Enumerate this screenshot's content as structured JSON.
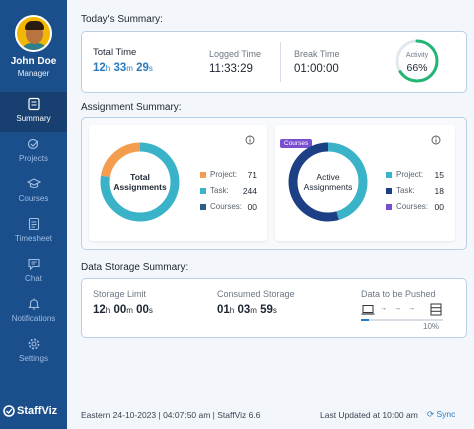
{
  "user": {
    "name": "John Doe",
    "role": "Manager"
  },
  "nav": [
    {
      "label": "Summary",
      "icon": "summary-icon",
      "active": true
    },
    {
      "label": "Projects",
      "icon": "projects-icon",
      "active": false
    },
    {
      "label": "Courses",
      "icon": "courses-icon",
      "active": false
    },
    {
      "label": "Timesheet",
      "icon": "timesheet-icon",
      "active": false
    },
    {
      "label": "Chat",
      "icon": "chat-icon",
      "active": false
    },
    {
      "label": "Notifications",
      "icon": "bell-icon",
      "active": false
    },
    {
      "label": "Settings",
      "icon": "gear-icon",
      "active": false
    }
  ],
  "brand": "StaffViz",
  "today": {
    "title": "Today's Summary:",
    "total_label": "Total Time",
    "total": {
      "h": "12",
      "h_unit": "h",
      "m": "33",
      "m_unit": "m",
      "s": "29",
      "s_unit": "s"
    },
    "logged_label": "Logged Time",
    "logged_value": "11:33:29",
    "break_label": "Break Time",
    "break_value": "01:00:00",
    "activity_label": "Activity",
    "activity_value": "66%",
    "activity_fraction": 0.66
  },
  "assignment": {
    "title": "Assignment Summary:",
    "total": {
      "center_line1": "Total",
      "center_line2": "Assignments",
      "items": [
        {
          "label": "Project:",
          "value": "71",
          "color": "#f59d4f"
        },
        {
          "label": "Task:",
          "value": "244",
          "color": "#3ab3c9"
        },
        {
          "label": "Courses:",
          "value": "00",
          "color": "#2b5f8a"
        }
      ]
    },
    "active": {
      "badge": "Courses",
      "center_line1": "Active",
      "center_line2": "Assignments",
      "items": [
        {
          "label": "Project:",
          "value": "15",
          "color": "#3ab3c9"
        },
        {
          "label": "Task:",
          "value": "18",
          "color": "#1d3f86"
        },
        {
          "label": "Courses:",
          "value": "00",
          "color": "#7a4fcf"
        }
      ]
    }
  },
  "storage": {
    "title": "Data Storage Summary:",
    "limit_label": "Storage Limit",
    "limit": {
      "h": "12",
      "m": "00",
      "s": "00"
    },
    "consumed_label": "Consumed Storage",
    "consumed": {
      "h": "01",
      "m": "03",
      "s": "59"
    },
    "units": {
      "h": "h",
      "m": "m",
      "s": "s"
    },
    "push_label": "Data to be Pushed",
    "push_percent": "10%",
    "push_fraction": 0.1
  },
  "footer": {
    "status": "Eastern 24-10-2023 | 04:07:50 am | StaffViz  6.6",
    "updated": "Last Updated at 10:00 am",
    "sync": "Sync"
  }
}
